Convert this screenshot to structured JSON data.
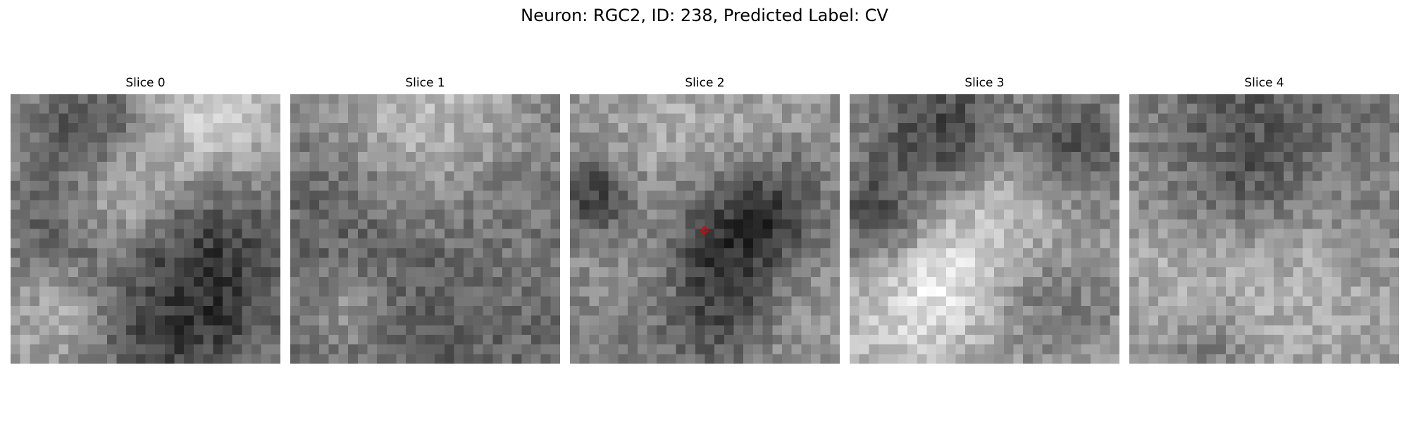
{
  "figure": {
    "title": "Neuron: RGC2, ID: 238, Predicted Label: CV"
  },
  "panels": [
    {
      "title": "Slice 0"
    },
    {
      "title": "Slice 1"
    },
    {
      "title": "Slice 2"
    },
    {
      "title": "Slice 3"
    },
    {
      "title": "Slice 4"
    }
  ],
  "marker": {
    "color": "#e00000",
    "shape": "diamond",
    "panel_index": 2
  }
}
